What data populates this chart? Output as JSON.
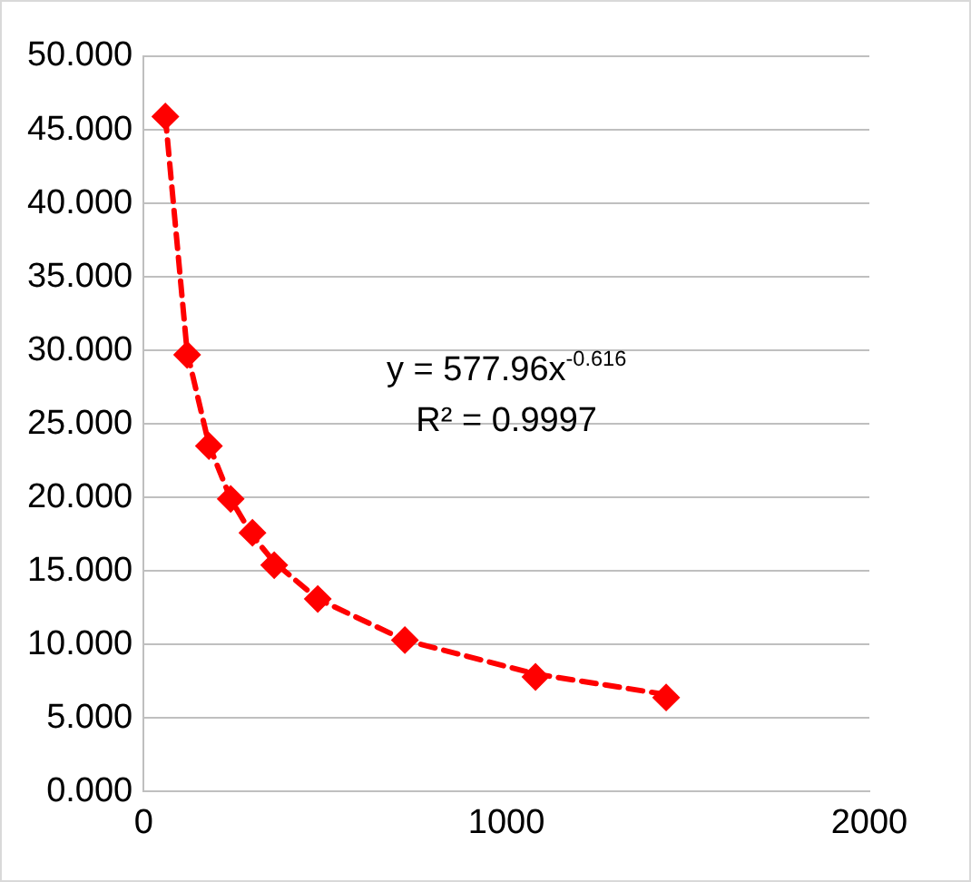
{
  "chart_data": {
    "type": "scatter",
    "x": [
      60,
      120,
      180,
      240,
      300,
      360,
      480,
      720,
      1080,
      1440
    ],
    "series": [
      {
        "type": "scatter",
        "color": "#ff0000",
        "marker": "diamond",
        "values": [
          45.9,
          29.7,
          23.5,
          19.9,
          17.6,
          15.4,
          13.1,
          10.3,
          7.8,
          6.4
        ]
      },
      {
        "type": "line",
        "color": "#ff0000",
        "line_style": "dashed",
        "marker": "none",
        "values": [
          45.9,
          29.9,
          23.6,
          19.9,
          17.4,
          15.6,
          13.1,
          10.3,
          8.0,
          6.6
        ]
      }
    ],
    "xlim": [
      0,
      2000
    ],
    "xticks": [
      0,
      1000,
      2000
    ],
    "ylim": [
      0,
      50
    ],
    "yticks": [
      {
        "value": 0,
        "label": "0.000"
      },
      {
        "value": 5,
        "label": "5.000"
      },
      {
        "value": 10,
        "label": "10.000"
      },
      {
        "value": 15,
        "label": "15.000"
      },
      {
        "value": 20,
        "label": "20.000"
      },
      {
        "value": 25,
        "label": "25.000"
      },
      {
        "value": 30,
        "label": "30.000"
      },
      {
        "value": 35,
        "label": "35.000"
      },
      {
        "value": 40,
        "label": "40.000"
      },
      {
        "value": 45,
        "label": "45.000"
      },
      {
        "value": 50,
        "label": "50.000"
      }
    ],
    "grid": "y",
    "legend": false,
    "annotations": [
      "y = 577.96x$^{-0.616}$",
      "R² = 0.9997"
    ]
  }
}
